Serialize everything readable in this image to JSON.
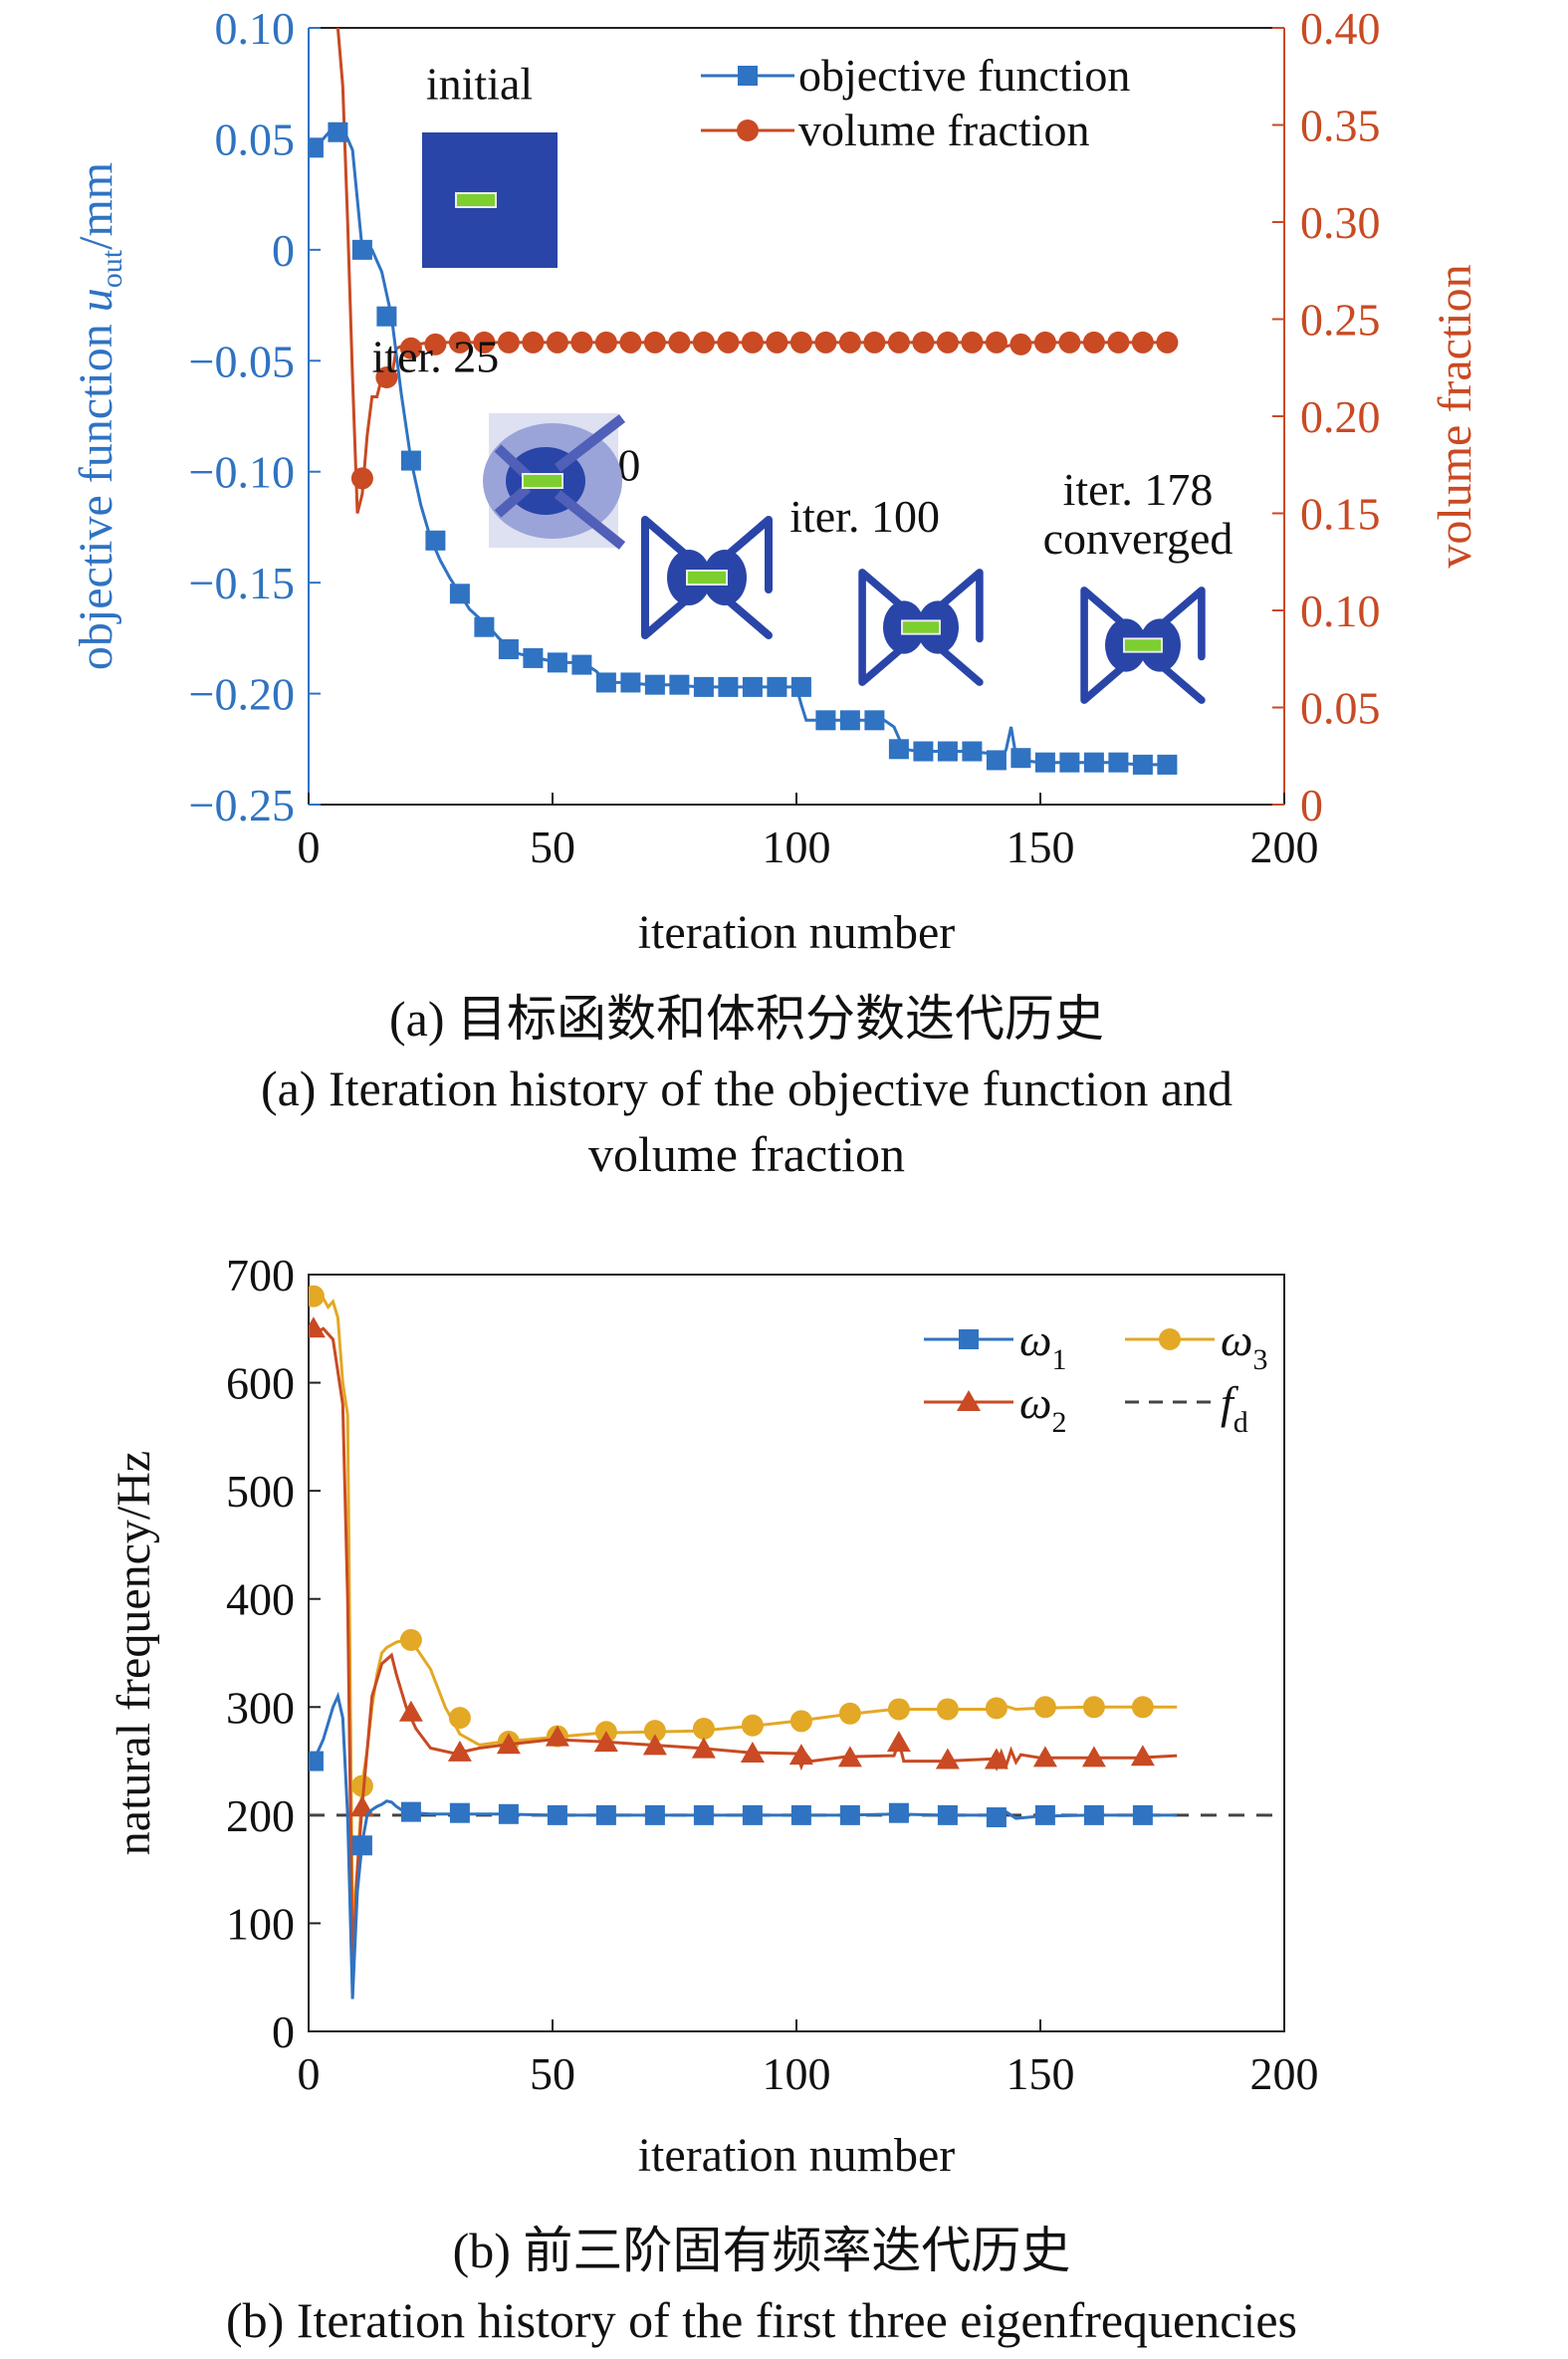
{
  "captions": {
    "a_cn": "(a) 目标函数和体积分数迭代历史",
    "a_en_1": "(a) Iteration history of the objective function and",
    "a_en_2": "volume fraction",
    "b_cn": "(b) 前三阶固有频率迭代历史",
    "b_en": "(b) Iteration history of the first three eigenfrequencies"
  },
  "colors": {
    "blue": "#2f73c2",
    "red": "#c94a23",
    "orange": "#e3a825",
    "dash": "#444444",
    "design_blue": "#2945a8",
    "design_green": "#7ccf2e"
  },
  "chart_data": [
    {
      "type": "line",
      "xlabel": "iteration number",
      "ylabel_left": "objective function u_out/mm",
      "ylabel_left_parts": {
        "pre": "objective function ",
        "var": "u",
        "sub": "out",
        "post": "/mm"
      },
      "ylabel_right": "volume fraction",
      "xlim": [
        0,
        200
      ],
      "ylim_left": [
        -0.25,
        0.1
      ],
      "ylim_right": [
        0,
        0.4
      ],
      "x_ticks": [
        "0",
        "50",
        "100",
        "150",
        "200"
      ],
      "y_left_ticks": [
        "0.10",
        "0.05",
        "0",
        "−0.05",
        "−0.10",
        "−0.15",
        "−0.20",
        "−0.25"
      ],
      "y_right_ticks": [
        "0.40",
        "0.35",
        "0.30",
        "0.25",
        "0.20",
        "0.15",
        "0.10",
        "0.05",
        "0"
      ],
      "legend_position": "top-right",
      "series": [
        {
          "name": "objective function",
          "axis": "left",
          "marker": "square",
          "x": [
            1,
            3,
            5,
            7,
            9,
            11,
            13,
            15,
            17,
            19,
            21,
            23,
            25,
            27,
            29,
            31,
            33,
            35,
            37,
            39,
            41,
            43,
            45,
            47,
            49,
            51,
            53,
            55,
            57,
            59,
            61,
            65,
            70,
            75,
            80,
            85,
            90,
            95,
            100,
            101,
            102,
            104,
            106,
            110,
            115,
            118,
            120,
            122,
            125,
            130,
            135,
            140,
            141,
            142,
            143,
            144,
            145,
            146,
            150,
            155,
            160,
            165,
            170,
            175,
            178
          ],
          "y": [
            0.046,
            0.05,
            0.055,
            0.055,
            0.045,
            0.0,
            0.0,
            -0.01,
            -0.03,
            -0.065,
            -0.095,
            -0.115,
            -0.13,
            -0.14,
            -0.148,
            -0.155,
            -0.162,
            -0.166,
            -0.17,
            -0.175,
            -0.179,
            -0.182,
            -0.183,
            -0.184,
            -0.185,
            -0.186,
            -0.186,
            -0.186,
            -0.187,
            -0.19,
            -0.195,
            -0.195,
            -0.196,
            -0.196,
            -0.197,
            -0.197,
            -0.197,
            -0.197,
            -0.197,
            -0.205,
            -0.212,
            -0.212,
            -0.212,
            -0.212,
            -0.212,
            -0.212,
            -0.215,
            -0.225,
            -0.226,
            -0.226,
            -0.226,
            -0.227,
            -0.229,
            -0.23,
            -0.225,
            -0.215,
            -0.228,
            -0.23,
            -0.231,
            -0.231,
            -0.231,
            -0.231,
            -0.232,
            -0.232,
            -0.232
          ],
          "markers": {
            "x": [
              1,
              6,
              11,
              16,
              21,
              26,
              31,
              36,
              41,
              46,
              51,
              56,
              61,
              66,
              71,
              76,
              81,
              86,
              91,
              96,
              101,
              106,
              111,
              116,
              121,
              126,
              131,
              136,
              141,
              146,
              151,
              156,
              161,
              166,
              171,
              176
            ],
            "y": [
              0.046,
              0.053,
              0.0,
              -0.03,
              -0.095,
              -0.131,
              -0.155,
              -0.17,
              -0.18,
              -0.184,
              -0.186,
              -0.187,
              -0.195,
              -0.195,
              -0.196,
              -0.196,
              -0.197,
              -0.197,
              -0.197,
              -0.197,
              -0.197,
              -0.212,
              -0.212,
              -0.212,
              -0.225,
              -0.226,
              -0.226,
              -0.226,
              -0.23,
              -0.229,
              -0.231,
              -0.231,
              -0.231,
              -0.231,
              -0.232,
              -0.232
            ]
          }
        },
        {
          "name": "volume fraction",
          "axis": "right",
          "marker": "circle",
          "x": [
            6,
            7,
            8,
            9,
            10,
            11,
            12,
            13,
            14,
            15,
            16,
            17,
            18,
            19,
            20,
            22,
            25,
            30,
            40,
            50,
            60,
            80,
            100,
            120,
            140,
            143,
            146,
            160,
            178
          ],
          "y": [
            0.4,
            0.37,
            0.3,
            0.22,
            0.15,
            0.16,
            0.19,
            0.21,
            0.21,
            0.22,
            0.22,
            0.22,
            0.235,
            0.236,
            0.236,
            0.237,
            0.238,
            0.238,
            0.238,
            0.238,
            0.238,
            0.238,
            0.238,
            0.238,
            0.238,
            0.236,
            0.238,
            0.238,
            0.238
          ],
          "markers": {
            "x": [
              11,
              16,
              21,
              26,
              31,
              36,
              41,
              46,
              51,
              56,
              61,
              66,
              71,
              76,
              81,
              86,
              91,
              96,
              101,
              106,
              111,
              116,
              121,
              126,
              131,
              136,
              141,
              146,
              151,
              156,
              161,
              166,
              171,
              176
            ],
            "y": [
              0.168,
              0.22,
              0.235,
              0.237,
              0.238,
              0.238,
              0.238,
              0.238,
              0.238,
              0.238,
              0.238,
              0.238,
              0.238,
              0.238,
              0.238,
              0.238,
              0.238,
              0.238,
              0.238,
              0.238,
              0.238,
              0.238,
              0.238,
              0.238,
              0.238,
              0.238,
              0.238,
              0.237,
              0.238,
              0.238,
              0.238,
              0.238,
              0.238,
              0.238
            ]
          }
        }
      ],
      "annotations": [
        {
          "text": "initial",
          "x": 35,
          "y": 0.068,
          "stage": "initial"
        },
        {
          "text": "iter. 25",
          "x": 26,
          "y": -0.055,
          "stage": "iter25"
        },
        {
          "text": "iter. 50",
          "x": 55,
          "y": -0.104,
          "stage": "iter50"
        },
        {
          "text": "iter. 100",
          "x": 114,
          "y": -0.127,
          "stage": "iter100"
        },
        {
          "text": "iter. 178",
          "x": 170,
          "y": -0.115,
          "stage": "iter178"
        },
        {
          "text": "converged",
          "x": 170,
          "y": -0.137,
          "stage": null
        }
      ]
    },
    {
      "type": "line",
      "xlabel": "iteration number",
      "ylabel": "natural frequency/Hz",
      "xlim": [
        0,
        200
      ],
      "ylim": [
        0,
        700
      ],
      "x_ticks": [
        "0",
        "50",
        "100",
        "150",
        "200"
      ],
      "y_ticks": [
        "700",
        "600",
        "500",
        "400",
        "300",
        "200",
        "100",
        "0"
      ],
      "legend_position": "top-right",
      "series": [
        {
          "name": "ω",
          "sub": "1",
          "marker": "square",
          "x": [
            1,
            3,
            5,
            6,
            7,
            8,
            9,
            10,
            11,
            12,
            13,
            14,
            15,
            16,
            17,
            18,
            19,
            20,
            21,
            22,
            25,
            30,
            40,
            50,
            60,
            70,
            80,
            90,
            100,
            110,
            120,
            130,
            140,
            141,
            143,
            145,
            150,
            160,
            170,
            178
          ],
          "y": [
            250,
            270,
            300,
            310,
            290,
            200,
            30,
            130,
            175,
            200,
            205,
            208,
            210,
            213,
            212,
            208,
            205,
            203,
            202,
            202,
            201,
            201,
            201,
            200,
            200,
            200,
            200,
            200,
            200,
            200,
            201,
            200,
            200,
            196,
            203,
            197,
            199,
            200,
            200,
            200
          ],
          "markers": {
            "x": [
              1,
              11,
              21,
              31,
              41,
              51,
              61,
              71,
              81,
              91,
              101,
              111,
              121,
              131,
              141,
              151,
              161,
              171
            ],
            "y": [
              250,
              172,
              203,
              202,
              201,
              200,
              200,
              200,
              200,
              200,
              200,
              200,
              202,
              200,
              198,
              200,
              200,
              200
            ]
          }
        },
        {
          "name": "ω",
          "sub": "2",
          "marker": "triangle",
          "x": [
            1,
            3,
            5,
            6,
            7,
            8,
            9,
            10,
            11,
            12,
            13,
            15,
            17,
            18,
            20,
            22,
            25,
            30,
            35,
            40,
            50,
            60,
            70,
            80,
            90,
            100,
            101,
            102,
            103,
            110,
            120,
            121,
            122,
            130,
            140,
            141,
            142,
            143,
            144,
            145,
            146,
            150,
            160,
            170,
            178
          ],
          "y": [
            645,
            650,
            640,
            610,
            580,
            400,
            60,
            150,
            210,
            260,
            310,
            340,
            348,
            330,
            300,
            280,
            262,
            257,
            262,
            265,
            270,
            268,
            265,
            262,
            258,
            257,
            245,
            256,
            250,
            254,
            255,
            268,
            250,
            250,
            252,
            244,
            258,
            246,
            260,
            249,
            256,
            253,
            253,
            253,
            255
          ],
          "markers": {
            "x": [
              1,
              11,
              21,
              31,
              41,
              51,
              61,
              71,
              81,
              91,
              101,
              111,
              121,
              131,
              141,
              151,
              161,
              171
            ],
            "y": [
              650,
              207,
              295,
              258,
              265,
              272,
              267,
              264,
              261,
              257,
              255,
              253,
              267,
              251,
              251,
              253,
              253,
              254
            ]
          }
        },
        {
          "name": "ω",
          "sub": "3",
          "marker": "circle",
          "x": [
            1,
            2,
            3,
            4,
            5,
            6,
            7,
            8,
            9,
            10,
            11,
            12,
            13,
            14,
            15,
            16,
            18,
            20,
            22,
            25,
            28,
            31,
            35,
            40,
            50,
            60,
            70,
            80,
            90,
            100,
            110,
            120,
            130,
            140,
            141,
            142,
            145,
            150,
            160,
            170,
            178
          ],
          "y": [
            680,
            682,
            678,
            670,
            675,
            660,
            600,
            570,
            100,
            150,
            230,
            260,
            300,
            330,
            350,
            355,
            360,
            362,
            355,
            335,
            300,
            275,
            265,
            268,
            272,
            276,
            277,
            278,
            282,
            287,
            293,
            298,
            298,
            298,
            296,
            302,
            298,
            299,
            300,
            300,
            300
          ],
          "markers": {
            "x": [
              1,
              11,
              21,
              31,
              41,
              51,
              61,
              71,
              81,
              91,
              101,
              111,
              121,
              131,
              141,
              151,
              161,
              171
            ],
            "y": [
              680,
              227,
              362,
              290,
              268,
              273,
              277,
              278,
              280,
              283,
              287,
              294,
              298,
              298,
              299,
              300,
              300,
              300
            ]
          }
        },
        {
          "name": "f",
          "sub": "d",
          "style": "dashed",
          "x": [
            0,
            200
          ],
          "y": [
            200,
            200
          ]
        }
      ]
    }
  ]
}
